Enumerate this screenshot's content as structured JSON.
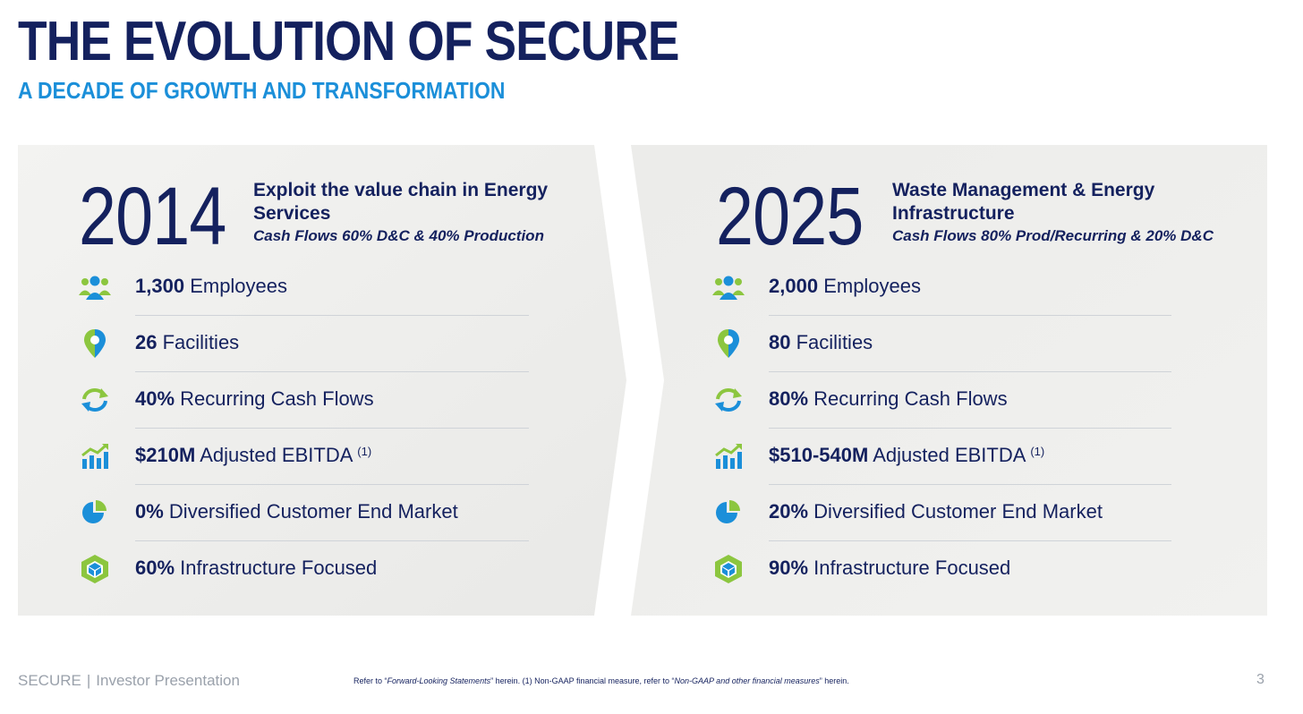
{
  "header": {
    "title": "THE EVOLUTION OF SECURE",
    "subtitle": "A DECADE OF GROWTH AND TRANSFORMATION"
  },
  "colors": {
    "navy": "#14215e",
    "blue": "#1b8fd9",
    "green": "#8cc63f",
    "panel": "#ededeb"
  },
  "left": {
    "year": "2014",
    "headline": "Exploit the value chain in Energy Services",
    "subline": "Cash Flows 60% D&C & 40% Production",
    "rows": [
      {
        "icon": "people-icon",
        "value": "1,300",
        "label": "Employees",
        "note": ""
      },
      {
        "icon": "location-pin-icon",
        "value": "26",
        "label": "Facilities",
        "note": ""
      },
      {
        "icon": "recurring-arrows-icon",
        "value": "40%",
        "label": "Recurring Cash Flows",
        "note": ""
      },
      {
        "icon": "growth-chart-icon",
        "value": "$210M",
        "label": "Adjusted EBITDA",
        "note": "(1)"
      },
      {
        "icon": "pie-chart-icon",
        "value": "0%",
        "label": "Diversified Customer End Market",
        "note": ""
      },
      {
        "icon": "infrastructure-cube-icon",
        "value": "60%",
        "label": "Infrastructure Focused",
        "note": ""
      }
    ]
  },
  "right": {
    "year": "2025",
    "headline": "Waste Management & Energy Infrastructure",
    "subline": "Cash Flows 80% Prod/Recurring & 20% D&C",
    "rows": [
      {
        "icon": "people-icon",
        "value": "2,000",
        "label": "Employees",
        "note": ""
      },
      {
        "icon": "location-pin-icon",
        "value": "80",
        "label": "Facilities",
        "note": ""
      },
      {
        "icon": "recurring-arrows-icon",
        "value": "80%",
        "label": "Recurring Cash Flows",
        "note": ""
      },
      {
        "icon": "growth-chart-icon",
        "value": "$510-540M",
        "label": "Adjusted EBITDA",
        "note": "(1)"
      },
      {
        "icon": "pie-chart-icon",
        "value": "20%",
        "label": "Diversified Customer End Market",
        "note": ""
      },
      {
        "icon": "infrastructure-cube-icon",
        "value": "90%",
        "label": "Infrastructure Focused",
        "note": ""
      }
    ]
  },
  "footer": {
    "brand": "SECURE",
    "separator": "|",
    "doc": "Investor Presentation",
    "note_a": "Refer to “",
    "note_b": "Forward-Looking Statements",
    "note_c": "” herein. (1) Non-GAAP financial measure, refer to “",
    "note_d": "Non-GAAP and other financial measures",
    "note_e": "” herein.",
    "page": "3"
  }
}
